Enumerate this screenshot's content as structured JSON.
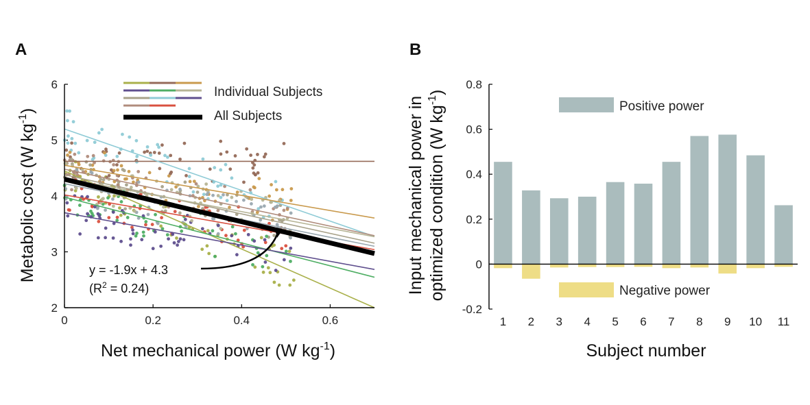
{
  "chart_data": [
    {
      "panel_label": "A",
      "type": "scatter",
      "xlabel": "Net mechanical power (W kg",
      "xlabel_sup": "-1",
      "xlabel_end": ")",
      "ylabel": "Metabolic cost (W kg",
      "ylabel_sup": "-1",
      "ylabel_end": ")",
      "xlim": [
        0,
        0.7
      ],
      "ylim": [
        2,
        6
      ],
      "xticks": [
        "0",
        "0.2",
        "0.4",
        "0.6"
      ],
      "yticks": [
        "2",
        "3",
        "4",
        "5",
        "6"
      ],
      "legend": {
        "individual": "Individual Subjects",
        "all": "All Subjects"
      },
      "annotation": {
        "equation": "y =  -1.9x + 4.3",
        "r2_prefix": "(R",
        "r2_sup": "2",
        "r2_suffix": " = 0.24)"
      },
      "overall_fit": {
        "slope": -1.9,
        "intercept": 4.3
      },
      "subject_fits": [
        {
          "color": "#a9b04a",
          "intercept": 4.45,
          "slope": -3.5
        },
        {
          "color": "#956a58",
          "intercept": 4.62,
          "slope": 0.0
        },
        {
          "color": "#8fcbd6",
          "intercept": 5.2,
          "slope": -2.75
        },
        {
          "color": "#c99a4d",
          "intercept": 4.55,
          "slope": -1.35
        },
        {
          "color": "#b08c7c",
          "intercept": 4.48,
          "slope": -1.7
        },
        {
          "color": "#a8a28a",
          "intercept": 4.38,
          "slope": -1.75
        },
        {
          "color": "#d9503f",
          "intercept": 4.02,
          "slope": -1.4
        },
        {
          "color": "#4fae64",
          "intercept": 3.98,
          "slope": -2.05
        },
        {
          "color": "#5f4f8e",
          "intercept": 3.7,
          "slope": -1.45
        },
        {
          "color": "#9aa8b0",
          "intercept": 4.22,
          "slope": -1.6
        },
        {
          "color": "#b7b596",
          "intercept": 4.32,
          "slope": -1.5
        }
      ]
    },
    {
      "panel_label": "B",
      "type": "bar",
      "xlabel": "Subject number",
      "ylabel_line1": "Input mechanical power in",
      "ylabel_line2": "optimized condition (W kg",
      "ylabel_sup": "-1",
      "ylabel_end": ")",
      "ylim": [
        -0.2,
        0.8
      ],
      "yticks": [
        "-0.2",
        "0",
        "0.2",
        "0.4",
        "0.6",
        "0.8"
      ],
      "categories": [
        "1",
        "2",
        "3",
        "4",
        "5",
        "6",
        "7",
        "8",
        "9",
        "10",
        "11"
      ],
      "series": [
        {
          "name": "Positive power",
          "color": "#aabcbd",
          "values": [
            0.455,
            0.328,
            0.293,
            0.3,
            0.365,
            0.358,
            0.455,
            0.57,
            0.576,
            0.484,
            0.262
          ]
        },
        {
          "name": "Negative power",
          "color": "#eedd86",
          "values": [
            -0.018,
            -0.065,
            -0.015,
            -0.013,
            -0.013,
            -0.012,
            -0.018,
            -0.015,
            -0.042,
            -0.018,
            -0.012
          ]
        }
      ]
    }
  ]
}
